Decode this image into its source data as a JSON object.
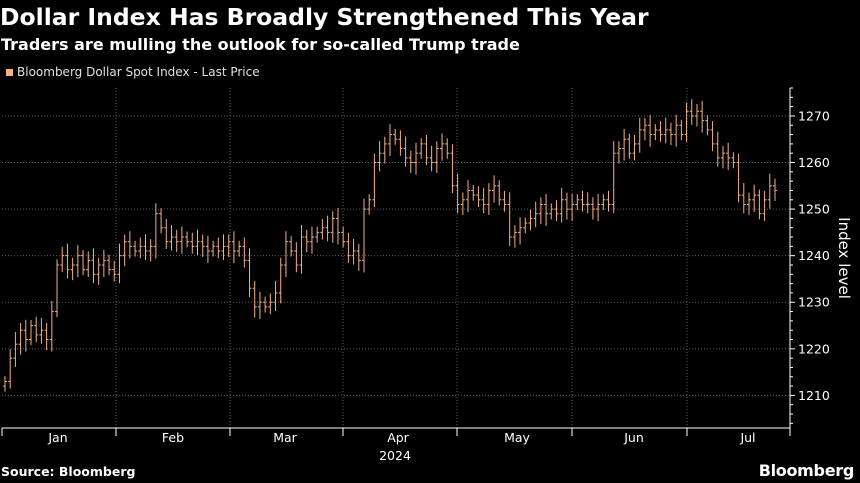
{
  "title": "Dollar Index Has Broadly Strengthened This Year",
  "subtitle": "Traders are mulling the outlook for so-called Trump trade",
  "legend_label": "Bloomberg Dollar Spot Index - Last Price",
  "source": "Source: Bloomberg",
  "brand": "Bloomberg",
  "colors": {
    "background": "#000000",
    "series": "#f4b183",
    "grid": "#5a5a5a",
    "text": "#ffffff"
  },
  "chart_data": {
    "type": "ohlc",
    "title": "Dollar Index Has Broadly Strengthened This Year",
    "ylabel": "Index level",
    "xlabel": "2024",
    "ylim": [
      1203,
      1276
    ],
    "yticks": [
      1210,
      1220,
      1230,
      1240,
      1250,
      1260,
      1270
    ],
    "month_labels": [
      "Jan",
      "Feb",
      "Mar",
      "Apr",
      "May",
      "Jun",
      "Jul"
    ],
    "year_label": "2024",
    "series": [
      {
        "name": "Bloomberg Dollar Spot Index - Last Price",
        "closes": [
          1213,
          1218,
          1221,
          1224,
          1222,
          1225,
          1223,
          1224,
          1222,
          1228,
          1238,
          1240,
          1237,
          1238,
          1240,
          1237,
          1239,
          1236,
          1238,
          1239,
          1237,
          1236,
          1240,
          1243,
          1242,
          1241,
          1242,
          1241,
          1242,
          1249,
          1246,
          1243,
          1244,
          1243,
          1244,
          1243,
          1242,
          1243,
          1242,
          1241,
          1242,
          1241,
          1242,
          1243,
          1241,
          1242,
          1239,
          1233,
          1229,
          1230,
          1229,
          1230,
          1232,
          1238,
          1243,
          1241,
          1238,
          1244,
          1243,
          1244,
          1245,
          1246,
          1245,
          1248,
          1245,
          1243,
          1240,
          1241,
          1239,
          1250,
          1252,
          1260,
          1262,
          1264,
          1266,
          1265,
          1263,
          1261,
          1260,
          1262,
          1264,
          1261,
          1260,
          1263,
          1264,
          1262,
          1255,
          1251,
          1252,
          1254,
          1253,
          1252,
          1251,
          1254,
          1255,
          1252,
          1251,
          1244,
          1245,
          1246,
          1247,
          1248,
          1249,
          1251,
          1249,
          1250,
          1249,
          1252,
          1250,
          1251,
          1252,
          1251,
          1251,
          1250,
          1251,
          1252,
          1251,
          1262,
          1263,
          1265,
          1262,
          1264,
          1267,
          1268,
          1266,
          1267,
          1266,
          1267,
          1266,
          1268,
          1266,
          1271,
          1270,
          1271,
          1269,
          1267,
          1264,
          1261,
          1262,
          1261,
          1260,
          1253,
          1251,
          1252,
          1253,
          1249,
          1252,
          1255,
          1254
        ]
      }
    ]
  }
}
